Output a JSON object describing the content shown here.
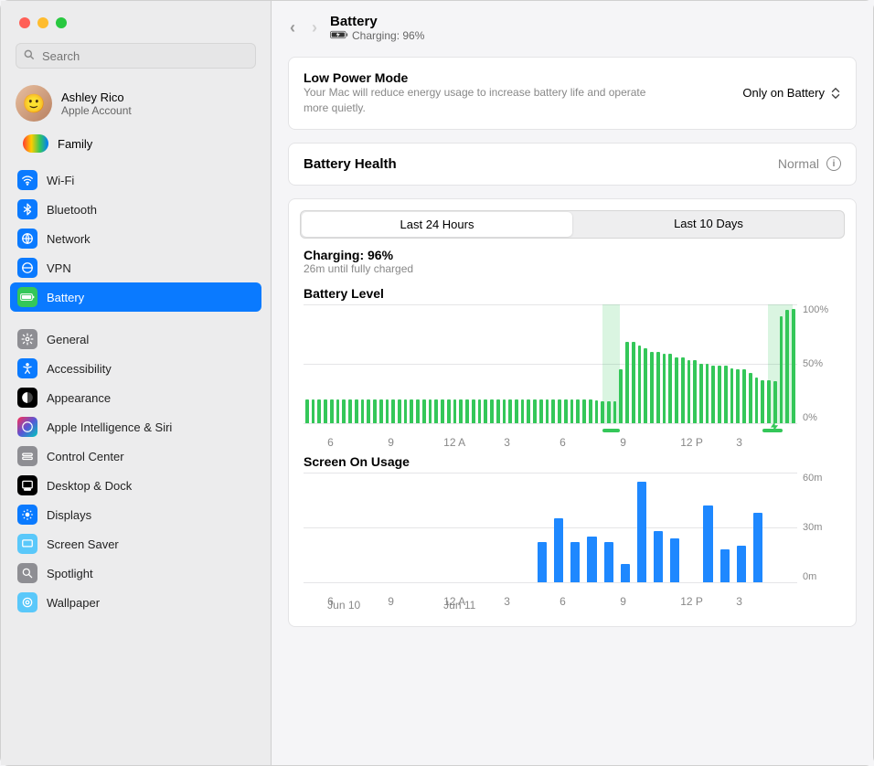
{
  "window": {
    "title": "Battery",
    "status": "Charging: 96%"
  },
  "search": {
    "placeholder": "Search"
  },
  "account": {
    "name": "Ashley Rico",
    "sub": "Apple Account"
  },
  "family": {
    "label": "Family"
  },
  "sidebar": {
    "group1": [
      {
        "label": "Wi-Fi",
        "icon_bg": "#0a7aff",
        "glyph": "wifi"
      },
      {
        "label": "Bluetooth",
        "icon_bg": "#0a7aff",
        "glyph": "bt"
      },
      {
        "label": "Network",
        "icon_bg": "#0a7aff",
        "glyph": "net"
      },
      {
        "label": "VPN",
        "icon_bg": "#0a7aff",
        "glyph": "vpn"
      },
      {
        "label": "Battery",
        "icon_bg": "#34c759",
        "glyph": "bat",
        "selected": true
      }
    ],
    "group2": [
      {
        "label": "General",
        "icon_bg": "#8e8e93",
        "glyph": "gear"
      },
      {
        "label": "Accessibility",
        "icon_bg": "#0a7aff",
        "glyph": "acc"
      },
      {
        "label": "Appearance",
        "icon_bg": "#000000",
        "glyph": "app"
      },
      {
        "label": "Apple Intelligence & Siri",
        "icon_bg": "linear-gradient(135deg,#ff2d55,#5856d6,#00c7be)",
        "glyph": "ai"
      },
      {
        "label": "Control Center",
        "icon_bg": "#8e8e93",
        "glyph": "cc"
      },
      {
        "label": "Desktop & Dock",
        "icon_bg": "#000000",
        "glyph": "dock"
      },
      {
        "label": "Displays",
        "icon_bg": "#0a7aff",
        "glyph": "disp"
      },
      {
        "label": "Screen Saver",
        "icon_bg": "#5ac8fa",
        "glyph": "ss"
      },
      {
        "label": "Spotlight",
        "icon_bg": "#8e8e93",
        "glyph": "spot"
      },
      {
        "label": "Wallpaper",
        "icon_bg": "#5ac8fa",
        "glyph": "wall"
      }
    ]
  },
  "low_power": {
    "title": "Low Power Mode",
    "desc": "Your Mac will reduce energy usage to increase battery life and operate more quietly.",
    "value": "Only on Battery"
  },
  "battery_health": {
    "title": "Battery Health",
    "value": "Normal"
  },
  "tabs": {
    "a": "Last 24 Hours",
    "b": "Last 10 Days",
    "active": "a"
  },
  "charge_now": {
    "line1": "Charging: 96%",
    "line2": "26m until fully charged"
  },
  "battery_level_chart": {
    "title": "Battery Level",
    "type": "bar",
    "bar_color": "#34c759",
    "background": "#ffffff",
    "grid_color": "#e5e5e7",
    "ylim": [
      0,
      100
    ],
    "yticks": [
      "100%",
      "50%",
      "0%"
    ],
    "xticks": [
      {
        "label": "6",
        "pos_pct": 2
      },
      {
        "label": "9",
        "pos_pct": 15
      },
      {
        "label": "12 A",
        "pos_pct": 27
      },
      {
        "label": "3",
        "pos_pct": 40
      },
      {
        "label": "6",
        "pos_pct": 52
      },
      {
        "label": "9",
        "pos_pct": 65
      },
      {
        "label": "12 P",
        "pos_pct": 78
      },
      {
        "label": "3",
        "pos_pct": 90
      }
    ],
    "charging_bands": [
      {
        "start_pct": 60.5,
        "width_pct": 3.5
      },
      {
        "start_pct": 94,
        "width_pct": 5
      }
    ],
    "charge_marks": [
      {
        "start_pct": 60.5,
        "width_pct": 3.5
      },
      {
        "start_pct": 93,
        "width_pct": 4
      }
    ],
    "bolt_pos_pct": 94,
    "values": [
      20,
      20,
      20,
      20,
      20,
      20,
      20,
      20,
      20,
      20,
      20,
      20,
      20,
      20,
      20,
      20,
      20,
      20,
      20,
      20,
      20,
      20,
      20,
      20,
      20,
      20,
      20,
      20,
      20,
      20,
      20,
      20,
      20,
      20,
      20,
      20,
      20,
      20,
      20,
      20,
      20,
      20,
      20,
      20,
      20,
      20,
      20,
      19,
      18,
      18,
      18,
      45,
      68,
      68,
      65,
      63,
      60,
      60,
      58,
      58,
      55,
      55,
      53,
      53,
      50,
      50,
      48,
      48,
      48,
      46,
      45,
      45,
      42,
      38,
      36,
      36,
      35,
      90,
      95,
      96
    ]
  },
  "screen_chart": {
    "title": "Screen On Usage",
    "type": "bar",
    "bar_color": "#1e88ff",
    "background": "#ffffff",
    "grid_color": "#e5e5e7",
    "ylim": [
      0,
      60
    ],
    "yticks": [
      "60m",
      "30m",
      "0m"
    ],
    "xticks": [
      {
        "label": "6",
        "pos_pct": 2
      },
      {
        "label": "9",
        "pos_pct": 15
      },
      {
        "label": "12 A",
        "pos_pct": 27
      },
      {
        "label": "3",
        "pos_pct": 40
      },
      {
        "label": "6",
        "pos_pct": 52
      },
      {
        "label": "9",
        "pos_pct": 65
      },
      {
        "label": "12 P",
        "pos_pct": 78
      },
      {
        "label": "3",
        "pos_pct": 90
      }
    ],
    "dates": [
      {
        "label": "Jun 10",
        "pos_pct": 2
      },
      {
        "label": "Jun 11",
        "pos_pct": 27
      }
    ],
    "values": [
      0,
      0,
      0,
      0,
      0,
      0,
      0,
      0,
      0,
      0,
      0,
      0,
      0,
      0,
      22,
      35,
      22,
      25,
      22,
      10,
      55,
      28,
      24,
      0,
      42,
      18,
      20,
      38,
      0,
      0
    ]
  }
}
